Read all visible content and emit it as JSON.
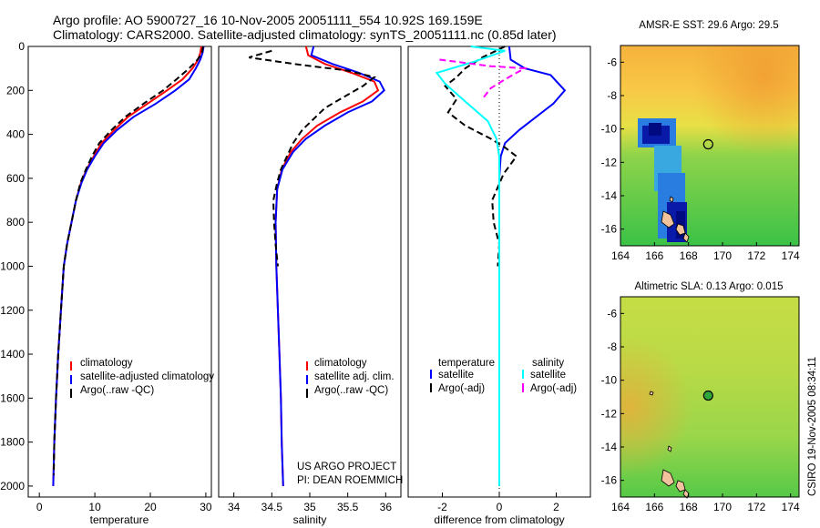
{
  "title_line1": "Argo profile: AO 5900727_16 10-Nov-2005 20051111_554 10.92S 169.159E",
  "title_line2": "Climatology: CARS2000. Satellite-adjusted climatology: synTS_20051111.nc (0.85d later)",
  "credit": [
    "US ARGO PROJECT",
    "PI: DEAN ROEMMICH"
  ],
  "side_text": "CSIRO 19-Nov-2005 08:34:11",
  "colors": {
    "climatology": "#ff0000",
    "satellite": "#0000ff",
    "argo": "#000000",
    "sat_salinity": "#00ffff",
    "argo_salinity": "#ff00ff"
  },
  "chart_data": [
    {
      "type": "line",
      "xlabel": "temperature",
      "xlim": [
        -2,
        31
      ],
      "ylim": [
        2050,
        0
      ],
      "xticks": [
        "0",
        "10",
        "20",
        "30"
      ],
      "xtick_values": [
        0,
        10,
        20,
        30
      ],
      "yticks": [
        "0",
        "200",
        "400",
        "600",
        "800",
        "1000",
        "1200",
        "1400",
        "1600",
        "1800",
        "2000"
      ],
      "ytick_values": [
        0,
        200,
        400,
        600,
        800,
        1000,
        1200,
        1400,
        1600,
        1800,
        2000
      ],
      "legend": [
        "climatology",
        "satellite-adjusted climatology",
        "Argo(..raw -QC)"
      ],
      "series": [
        {
          "key": "climatology",
          "style": "solid",
          "points": [
            [
              29.2,
              0
            ],
            [
              29,
              30
            ],
            [
              28.6,
              60
            ],
            [
              27.6,
              100
            ],
            [
              25.8,
              150
            ],
            [
              23,
              200
            ],
            [
              19.5,
              260
            ],
            [
              16,
              320
            ],
            [
              13.5,
              380
            ],
            [
              11.2,
              440
            ],
            [
              9.8,
              500
            ],
            [
              8.5,
              560
            ],
            [
              7.5,
              620
            ],
            [
              6.6,
              700
            ],
            [
              5.8,
              800
            ],
            [
              5,
              900
            ],
            [
              4.4,
              1000
            ],
            [
              3.9,
              1200
            ],
            [
              3.4,
              1400
            ],
            [
              3,
              1600
            ],
            [
              2.7,
              1800
            ],
            [
              2.5,
              2000
            ]
          ]
        },
        {
          "key": "satellite",
          "style": "solid",
          "points": [
            [
              29.6,
              0
            ],
            [
              29.4,
              30
            ],
            [
              29,
              60
            ],
            [
              28.2,
              100
            ],
            [
              27,
              150
            ],
            [
              24.5,
              200
            ],
            [
              21,
              260
            ],
            [
              17,
              320
            ],
            [
              14,
              380
            ],
            [
              11.6,
              440
            ],
            [
              10,
              500
            ],
            [
              8.6,
              560
            ],
            [
              7.6,
              620
            ],
            [
              6.6,
              700
            ],
            [
              5.8,
              800
            ],
            [
              5,
              900
            ],
            [
              4.4,
              1000
            ],
            [
              3.9,
              1200
            ],
            [
              3.4,
              1400
            ],
            [
              3,
              1600
            ],
            [
              2.7,
              1800
            ],
            [
              2.5,
              2000
            ]
          ]
        },
        {
          "key": "argo",
          "style": "dashed",
          "points": [
            [
              29.5,
              0
            ],
            [
              29.3,
              30
            ],
            [
              28.5,
              60
            ],
            [
              27,
              100
            ],
            [
              24.7,
              150
            ],
            [
              22.3,
              200
            ],
            [
              18.8,
              260
            ],
            [
              15.5,
              320
            ],
            [
              13,
              380
            ],
            [
              10.8,
              440
            ],
            [
              9.5,
              500
            ],
            [
              8.4,
              560
            ],
            [
              7.4,
              620
            ],
            [
              6.6,
              700
            ],
            [
              5.8,
              800
            ],
            [
              5,
              900
            ],
            [
              4.4,
              1000
            ],
            [
              3.9,
              1200
            ],
            [
              3.4,
              1400
            ],
            [
              3,
              1600
            ],
            [
              2.7,
              1800
            ],
            [
              2.6,
              1950
            ]
          ]
        }
      ]
    },
    {
      "type": "line",
      "xlabel": "salinity",
      "xlim": [
        33.8,
        36.2
      ],
      "ylim": [
        2050,
        0
      ],
      "xticks": [
        "34",
        "34.5",
        "35",
        "35.5",
        "36"
      ],
      "xtick_values": [
        34,
        34.5,
        35,
        35.5,
        36
      ],
      "legend": [
        "climatology",
        "satellite adj. clim.",
        "Argo(..raw -QC)"
      ],
      "series": [
        {
          "key": "climatology",
          "style": "solid",
          "points": [
            [
              34.95,
              0
            ],
            [
              34.98,
              40
            ],
            [
              35.2,
              80
            ],
            [
              35.55,
              120
            ],
            [
              35.85,
              160
            ],
            [
              35.9,
              200
            ],
            [
              35.7,
              250
            ],
            [
              35.4,
              300
            ],
            [
              35.1,
              360
            ],
            [
              34.9,
              420
            ],
            [
              34.75,
              480
            ],
            [
              34.63,
              560
            ],
            [
              34.57,
              650
            ],
            [
              34.55,
              800
            ],
            [
              34.56,
              1000
            ],
            [
              34.58,
              1200
            ],
            [
              34.6,
              1400
            ],
            [
              34.62,
              1600
            ],
            [
              34.63,
              1800
            ],
            [
              34.65,
              2000
            ]
          ]
        },
        {
          "key": "satellite",
          "style": "solid",
          "points": [
            [
              35.05,
              0
            ],
            [
              35.02,
              40
            ],
            [
              35.3,
              80
            ],
            [
              35.65,
              120
            ],
            [
              35.92,
              160
            ],
            [
              35.98,
              200
            ],
            [
              35.82,
              250
            ],
            [
              35.5,
              300
            ],
            [
              35.2,
              360
            ],
            [
              34.95,
              420
            ],
            [
              34.78,
              480
            ],
            [
              34.64,
              560
            ],
            [
              34.57,
              650
            ],
            [
              34.55,
              800
            ],
            [
              34.56,
              1000
            ],
            [
              34.58,
              1200
            ],
            [
              34.6,
              1400
            ],
            [
              34.62,
              1600
            ],
            [
              34.63,
              1800
            ],
            [
              34.65,
              2000
            ]
          ]
        },
        {
          "key": "argo",
          "style": "dashed",
          "points": [
            [
              34.5,
              20
            ],
            [
              34.2,
              50
            ],
            [
              34.8,
              80
            ],
            [
              35.5,
              110
            ],
            [
              35.85,
              140
            ],
            [
              35.7,
              180
            ],
            [
              35.45,
              230
            ],
            [
              35.2,
              280
            ],
            [
              35.05,
              330
            ],
            [
              34.9,
              380
            ],
            [
              34.78,
              440
            ],
            [
              34.7,
              500
            ],
            [
              34.62,
              560
            ],
            [
              34.57,
              620
            ],
            [
              34.52,
              700
            ],
            [
              34.53,
              800
            ],
            [
              34.55,
              900
            ],
            [
              34.58,
              1000
            ]
          ]
        }
      ]
    },
    {
      "type": "line",
      "xlabel": "difference from climatology",
      "xlim": [
        -3.2,
        3.2
      ],
      "ylim": [
        2050,
        0
      ],
      "xticks": [
        "-2",
        "0",
        "2"
      ],
      "xtick_values": [
        -2,
        0,
        2
      ],
      "legend_headers": [
        "temperature",
        "salinity"
      ],
      "legend_t": [
        "satellite",
        "Argo(-adj)"
      ],
      "legend_s": [
        "satellite",
        "Argo(-adj)"
      ],
      "series": [
        {
          "key": "sat_t",
          "color": "satellite",
          "style": "solid",
          "points": [
            [
              0.35,
              0
            ],
            [
              0.4,
              60
            ],
            [
              0.9,
              100
            ],
            [
              1.8,
              130
            ],
            [
              2.3,
              200
            ],
            [
              1.9,
              260
            ],
            [
              1.3,
              320
            ],
            [
              0.7,
              380
            ],
            [
              0.2,
              440
            ],
            [
              0.05,
              500
            ],
            [
              0,
              600
            ],
            [
              0,
              800
            ],
            [
              0,
              1000
            ],
            [
              0,
              1500
            ],
            [
              0,
              2000
            ]
          ]
        },
        {
          "key": "argo_t",
          "color": "argo",
          "style": "dashed",
          "points": [
            [
              0.2,
              0
            ],
            [
              -0.6,
              50
            ],
            [
              -1.2,
              100
            ],
            [
              -1.5,
              140
            ],
            [
              -1.9,
              180
            ],
            [
              -1.5,
              240
            ],
            [
              -1.8,
              300
            ],
            [
              -1.2,
              360
            ],
            [
              -0.3,
              420
            ],
            [
              0.2,
              460
            ],
            [
              0.6,
              500
            ],
            [
              0.15,
              580
            ],
            [
              -0.25,
              700
            ],
            [
              -0.2,
              800
            ],
            [
              0,
              900
            ],
            [
              -0.05,
              1000
            ]
          ]
        },
        {
          "key": "sat_s",
          "color": "sat_salinity",
          "style": "solid",
          "points": [
            [
              -1,
              0
            ],
            [
              0.2,
              20
            ],
            [
              -0.9,
              70
            ],
            [
              -2.2,
              120
            ],
            [
              -1.9,
              170
            ],
            [
              -1.2,
              250
            ],
            [
              -0.4,
              340
            ],
            [
              -0.1,
              420
            ],
            [
              0,
              500
            ],
            [
              0,
              800
            ],
            [
              0,
              1000
            ],
            [
              0,
              1500
            ],
            [
              0,
              2000
            ]
          ]
        },
        {
          "key": "argo_s",
          "color": "argo_salinity",
          "style": "dashed",
          "points": [
            [
              -2.1,
              60
            ],
            [
              -1.2,
              75
            ],
            [
              -0.3,
              90
            ],
            [
              0.9,
              100
            ],
            [
              0.6,
              120
            ],
            [
              0.2,
              150
            ],
            [
              -0.3,
              190
            ],
            [
              -0.6,
              240
            ]
          ]
        }
      ]
    },
    {
      "type": "heatmap",
      "title": "AMSR-E SST: 29.6 Argo: 29.5",
      "xlim": [
        164,
        174.5
      ],
      "ylim": [
        -17,
        -5
      ],
      "xticks": [
        "164",
        "166",
        "168",
        "170",
        "172",
        "174"
      ],
      "xtick_values": [
        164,
        166,
        168,
        170,
        172,
        174
      ],
      "yticks": [
        "-6",
        "-8",
        "-10",
        "-12",
        "-14",
        "-16"
      ],
      "ytick_values": [
        -6,
        -8,
        -10,
        -12,
        -14,
        -16
      ],
      "marker": [
        169.16,
        -10.92
      ]
    },
    {
      "type": "heatmap",
      "title": "Altimetric SLA: 0.13 Argo: 0.015",
      "xlim": [
        164,
        174.5
      ],
      "ylim": [
        -17,
        -5
      ],
      "xticks": [
        "164",
        "166",
        "168",
        "170",
        "172",
        "174"
      ],
      "xtick_values": [
        164,
        166,
        168,
        170,
        172,
        174
      ],
      "yticks": [
        "-6",
        "-8",
        "-10",
        "-12",
        "-14",
        "-16"
      ],
      "ytick_values": [
        -6,
        -8,
        -10,
        -12,
        -14,
        -16
      ],
      "marker": [
        169.16,
        -10.92
      ]
    }
  ]
}
